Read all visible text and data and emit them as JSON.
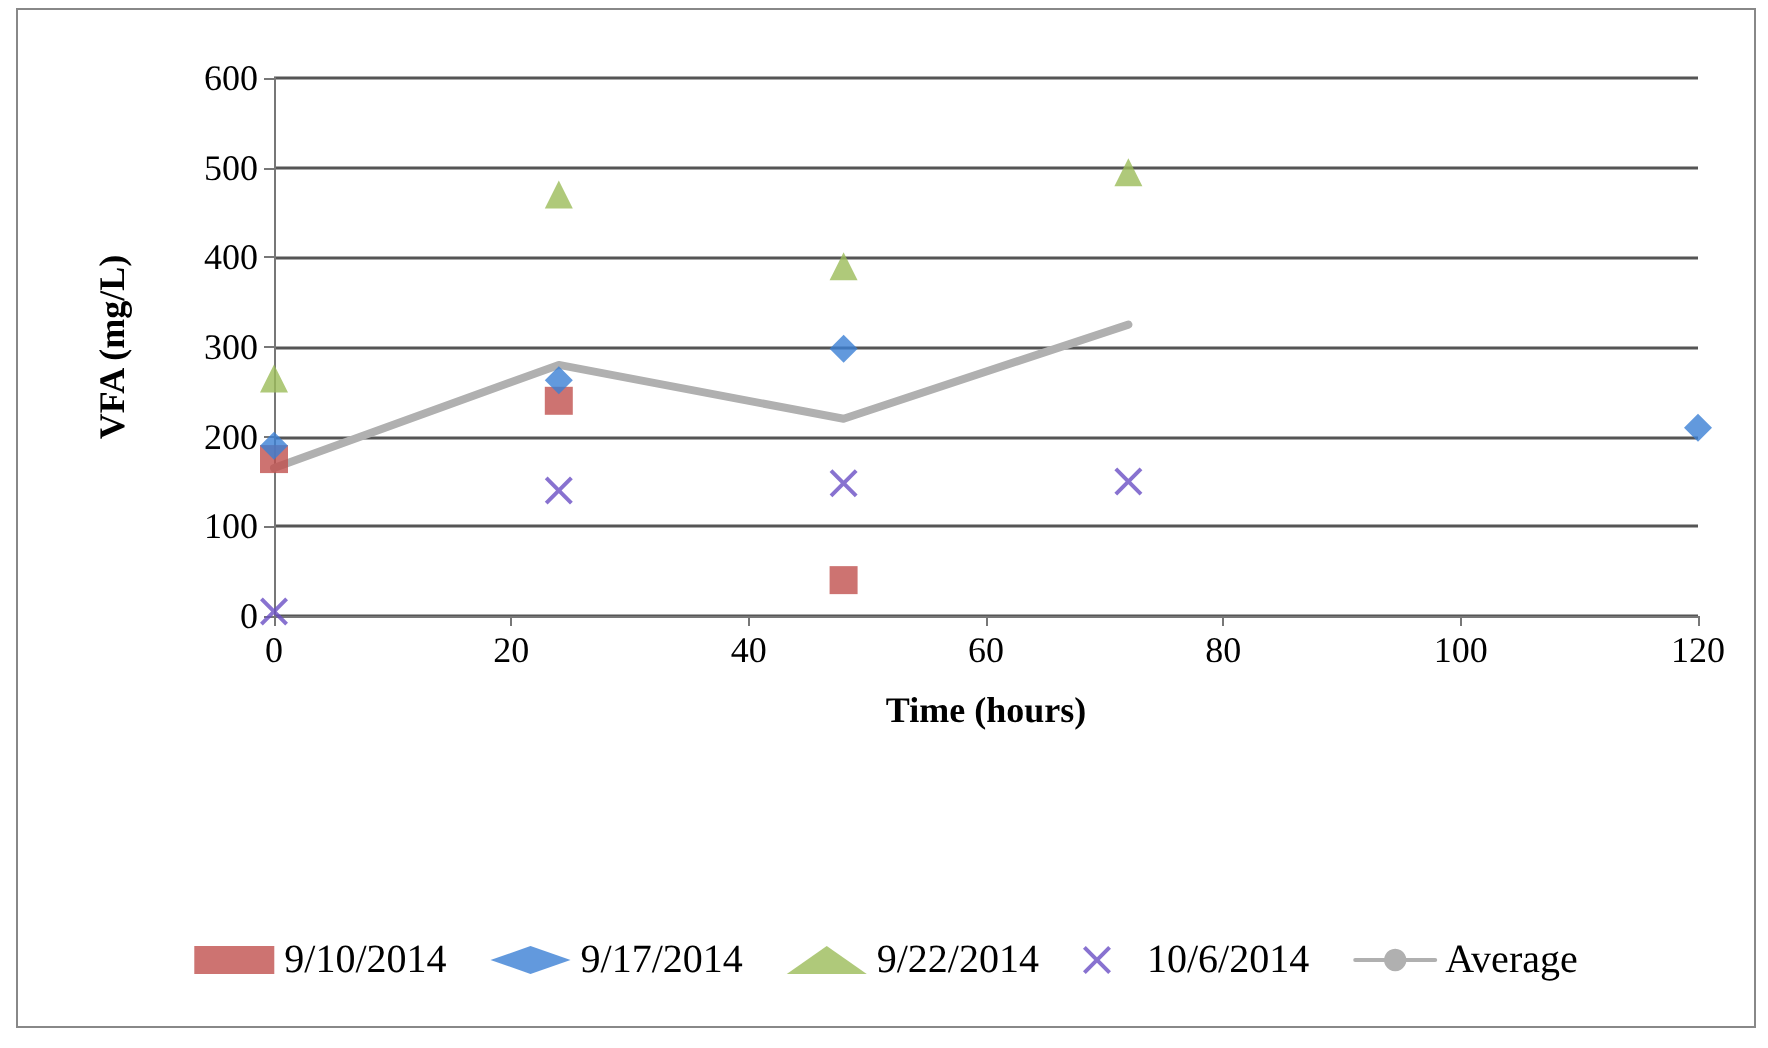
{
  "chart_data": {
    "type": "scatter",
    "xlabel": "Time (hours)",
    "ylabel": "VFA (mg/L)",
    "xlim": [
      0,
      120
    ],
    "xticks": [
      0,
      20,
      40,
      60,
      80,
      100,
      120
    ],
    "ylim": [
      0,
      600
    ],
    "yticks": [
      0,
      100,
      200,
      300,
      400,
      500,
      600
    ],
    "grid": "y",
    "legend": "bottom",
    "series": [
      {
        "name": "9/10/2014",
        "color": "#c0504d",
        "marker": "square",
        "x": [
          0,
          24,
          48
        ],
        "values": [
          175,
          240,
          40
        ]
      },
      {
        "name": "9/17/2014",
        "color": "#3b7fd4",
        "marker": "diamond",
        "x": [
          0,
          24,
          48,
          120
        ],
        "values": [
          190,
          263,
          298,
          210
        ]
      },
      {
        "name": "9/22/2014",
        "color": "#9bbb59",
        "marker": "triangle",
        "x": [
          0,
          24,
          48,
          72
        ],
        "values": [
          265,
          470,
          390,
          495
        ]
      },
      {
        "name": "10/6/2014",
        "color": "#6a4fc4",
        "marker": "cross",
        "x": [
          0,
          24,
          48,
          72
        ],
        "values": [
          5,
          140,
          148,
          150
        ]
      },
      {
        "name": "Average",
        "type": "line",
        "color": "#b0b0b0",
        "marker": "none",
        "x": [
          0,
          24,
          48,
          72
        ],
        "values": [
          165,
          280,
          220,
          325
        ]
      }
    ]
  }
}
